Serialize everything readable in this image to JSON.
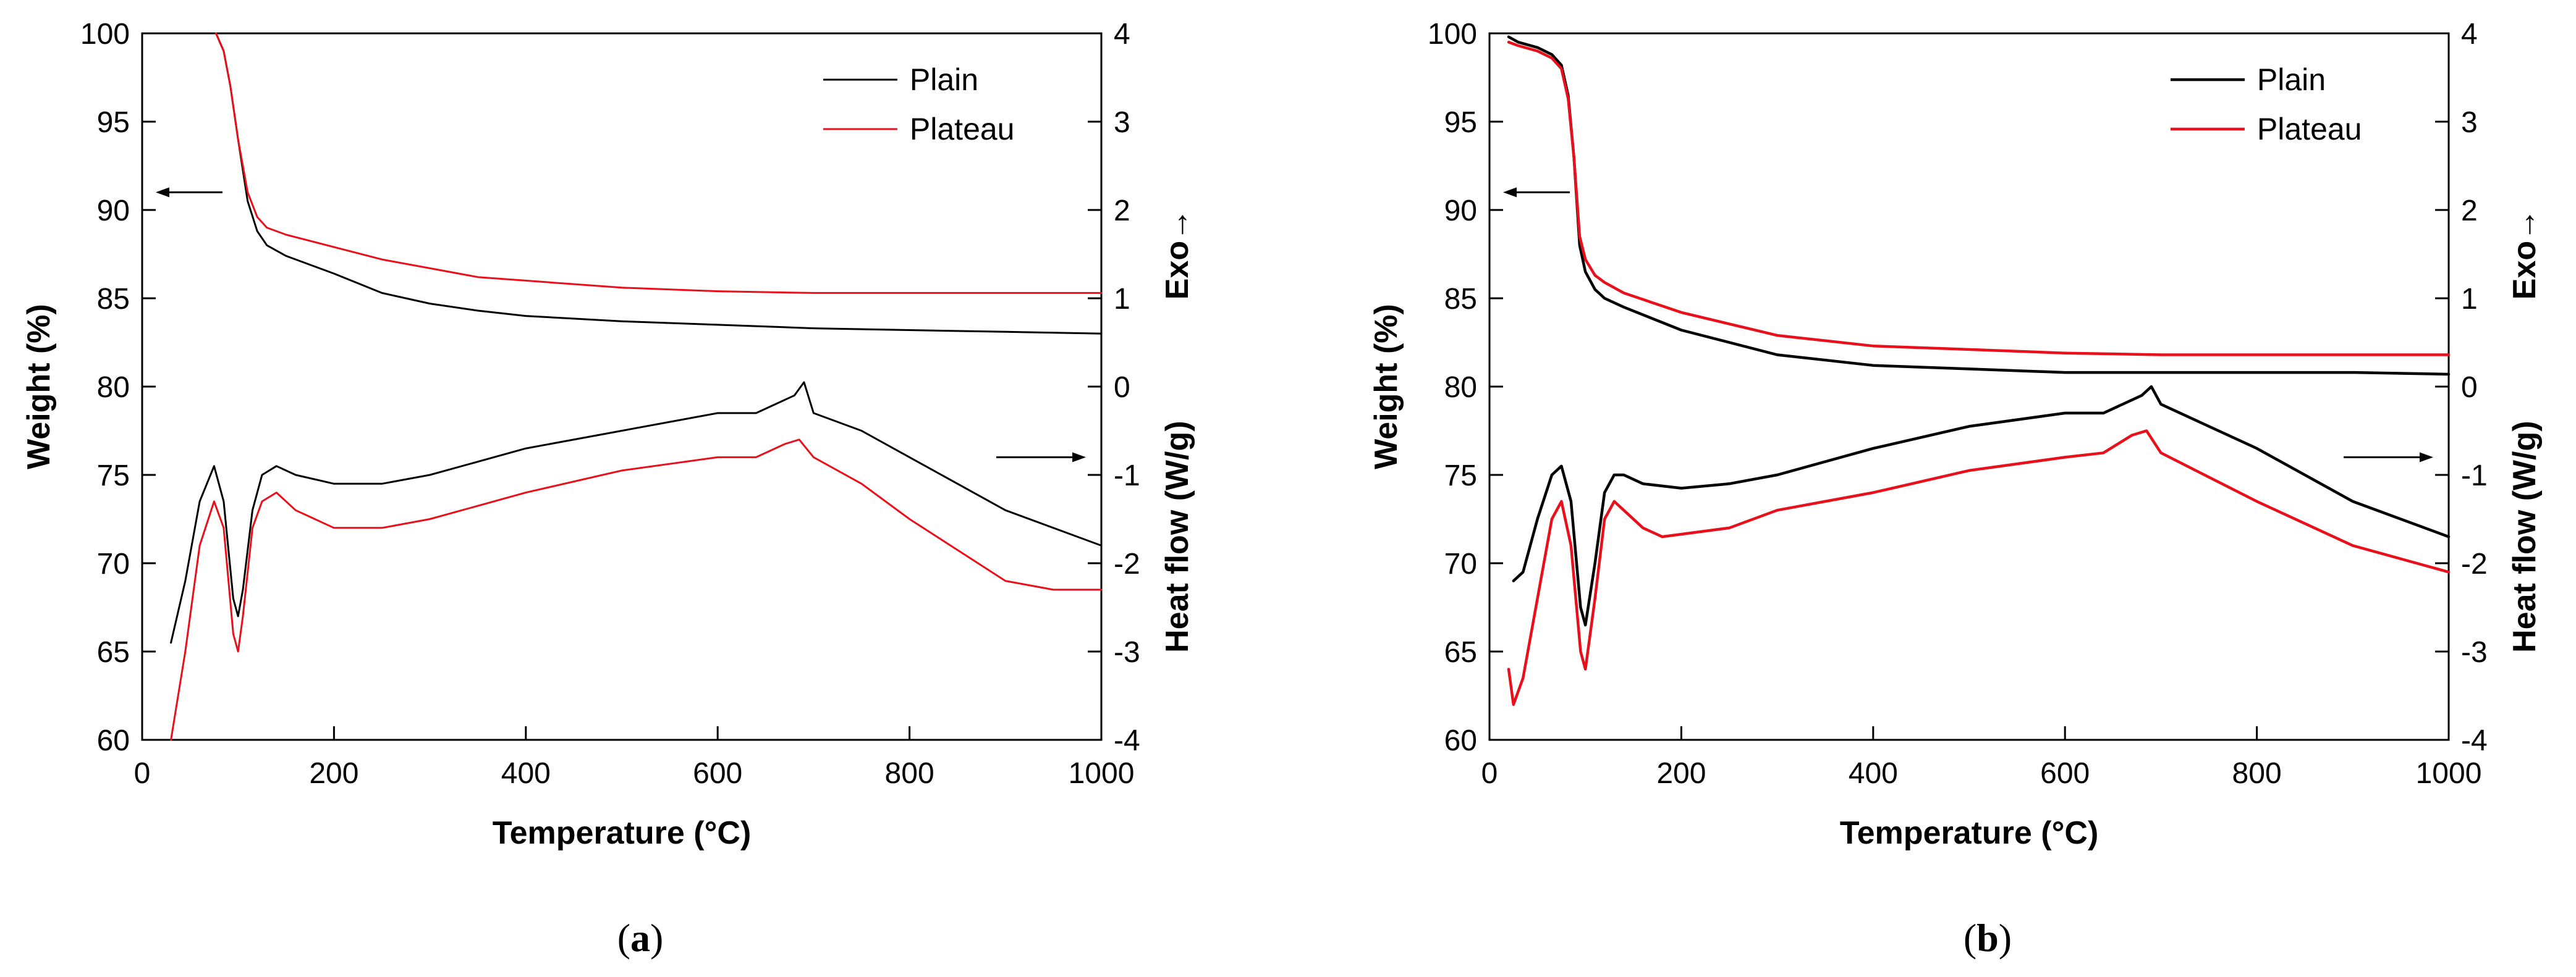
{
  "chart_data": [
    {
      "type": "line",
      "panel_label": "a",
      "xlabel": "Temperature (°C)",
      "ylabel_left": "Weight (%)",
      "ylabel_right": "Heat flow (W/g)",
      "exo_label": "Exo→",
      "xlim": [
        0,
        1000
      ],
      "ylim_left": [
        60,
        100
      ],
      "ylim_right": [
        -4,
        4
      ],
      "x_ticks": [
        0,
        200,
        400,
        600,
        800,
        1000
      ],
      "y_left_ticks": [
        60,
        65,
        70,
        75,
        80,
        85,
        90,
        95,
        100
      ],
      "y_right_ticks": [
        -4,
        -3,
        -2,
        -1,
        0,
        1,
        2,
        3,
        4
      ],
      "legend": [
        "Plain",
        "Plateau"
      ],
      "colors": {
        "Plain": "#000000",
        "Plateau": "#e8111b"
      },
      "series": [
        {
          "name": "Plain",
          "kind": "weight",
          "axis": "left",
          "x": [
            77,
            85,
            92,
            100,
            110,
            120,
            130,
            150,
            200,
            250,
            300,
            350,
            400,
            500,
            600,
            700,
            800,
            900,
            1000
          ],
          "y": [
            100,
            99,
            97,
            94,
            90.5,
            88.8,
            88,
            87.4,
            86.4,
            85.3,
            84.7,
            84.3,
            84.0,
            83.7,
            83.5,
            83.3,
            83.2,
            83.1,
            83.0
          ]
        },
        {
          "name": "Plateau",
          "kind": "weight",
          "axis": "left",
          "x": [
            77,
            85,
            92,
            100,
            110,
            120,
            130,
            150,
            200,
            250,
            300,
            350,
            400,
            500,
            600,
            700,
            800,
            900,
            1000
          ],
          "y": [
            100,
            99,
            97,
            94,
            91,
            89.6,
            89,
            88.6,
            87.9,
            87.2,
            86.7,
            86.2,
            86.0,
            85.6,
            85.4,
            85.3,
            85.3,
            85.3,
            85.3
          ]
        },
        {
          "name": "Plain",
          "kind": "heat",
          "axis": "right",
          "x": [
            30,
            45,
            60,
            75,
            85,
            95,
            100,
            105,
            115,
            125,
            140,
            160,
            200,
            250,
            300,
            400,
            500,
            600,
            640,
            680,
            690,
            700,
            750,
            800,
            900,
            1000
          ],
          "y": [
            -2.9,
            -2.2,
            -1.3,
            -0.9,
            -1.3,
            -2.4,
            -2.6,
            -2.3,
            -1.4,
            -1.0,
            -0.9,
            -1.0,
            -1.1,
            -1.1,
            -1.0,
            -0.7,
            -0.5,
            -0.3,
            -0.3,
            -0.1,
            0.05,
            -0.3,
            -0.5,
            -0.8,
            -1.4,
            -1.8
          ]
        },
        {
          "name": "Plateau",
          "kind": "heat",
          "axis": "right",
          "x": [
            30,
            45,
            60,
            75,
            85,
            95,
            100,
            105,
            115,
            125,
            140,
            160,
            200,
            250,
            300,
            400,
            500,
            600,
            640,
            670,
            685,
            700,
            750,
            800,
            900,
            950,
            1000
          ],
          "y": [
            -4.0,
            -3.0,
            -1.8,
            -1.3,
            -1.6,
            -2.8,
            -3.0,
            -2.6,
            -1.6,
            -1.3,
            -1.2,
            -1.4,
            -1.6,
            -1.6,
            -1.5,
            -1.2,
            -0.95,
            -0.8,
            -0.8,
            -0.65,
            -0.6,
            -0.8,
            -1.1,
            -1.5,
            -2.2,
            -2.3,
            -2.3
          ]
        }
      ]
    },
    {
      "type": "line",
      "panel_label": "b",
      "xlabel": "Temperature (°C)",
      "ylabel_left": "Weight (%)",
      "ylabel_right": "Heat flow (W/g)",
      "exo_label": "Exo→",
      "xlim": [
        0,
        1000
      ],
      "ylim_left": [
        60,
        100
      ],
      "ylim_right": [
        -4,
        4
      ],
      "x_ticks": [
        0,
        200,
        400,
        600,
        800,
        1000
      ],
      "y_left_ticks": [
        60,
        65,
        70,
        75,
        80,
        85,
        90,
        95,
        100
      ],
      "y_right_ticks": [
        -4,
        -3,
        -2,
        -1,
        0,
        1,
        2,
        3,
        4
      ],
      "legend": [
        "Plain",
        "Plateau"
      ],
      "colors": {
        "Plain": "#000000",
        "Plateau": "#e8111b"
      },
      "series": [
        {
          "name": "Plain",
          "kind": "weight",
          "axis": "left",
          "x": [
            20,
            30,
            50,
            65,
            75,
            82,
            88,
            94,
            100,
            110,
            120,
            140,
            200,
            300,
            400,
            500,
            600,
            700,
            800,
            900,
            1000
          ],
          "y": [
            99.8,
            99.5,
            99.2,
            98.8,
            98.2,
            96.5,
            93,
            88,
            86.5,
            85.5,
            85.0,
            84.5,
            83.2,
            81.8,
            81.2,
            81.0,
            80.8,
            80.8,
            80.8,
            80.8,
            80.7
          ]
        },
        {
          "name": "Plateau",
          "kind": "weight",
          "axis": "left",
          "x": [
            20,
            30,
            50,
            65,
            75,
            82,
            88,
            94,
            100,
            110,
            120,
            140,
            200,
            300,
            400,
            500,
            600,
            700,
            800,
            900,
            1000
          ],
          "y": [
            99.5,
            99.3,
            99.0,
            98.6,
            98.0,
            96.3,
            93,
            88.5,
            87.2,
            86.3,
            85.9,
            85.3,
            84.2,
            82.9,
            82.3,
            82.1,
            81.9,
            81.8,
            81.8,
            81.8,
            81.8
          ]
        },
        {
          "name": "Plain",
          "kind": "heat",
          "axis": "right",
          "x": [
            25,
            35,
            50,
            65,
            75,
            85,
            95,
            100,
            110,
            120,
            130,
            140,
            160,
            200,
            250,
            300,
            400,
            500,
            600,
            640,
            680,
            690,
            700,
            800,
            900,
            1000
          ],
          "y": [
            -2.2,
            -2.1,
            -1.5,
            -1.0,
            -0.9,
            -1.3,
            -2.5,
            -2.7,
            -2.0,
            -1.2,
            -1.0,
            -1.0,
            -1.1,
            -1.15,
            -1.1,
            -1.0,
            -0.7,
            -0.45,
            -0.3,
            -0.3,
            -0.1,
            0.0,
            -0.2,
            -0.7,
            -1.3,
            -1.7
          ]
        },
        {
          "name": "Plateau",
          "kind": "heat",
          "axis": "right",
          "x": [
            20,
            25,
            35,
            50,
            65,
            75,
            85,
            95,
            100,
            110,
            120,
            130,
            140,
            160,
            180,
            250,
            300,
            400,
            500,
            600,
            640,
            670,
            685,
            700,
            800,
            900,
            1000
          ],
          "y": [
            -3.2,
            -3.6,
            -3.3,
            -2.4,
            -1.5,
            -1.3,
            -1.8,
            -3.0,
            -3.2,
            -2.4,
            -1.5,
            -1.3,
            -1.4,
            -1.6,
            -1.7,
            -1.6,
            -1.4,
            -1.2,
            -0.95,
            -0.8,
            -0.75,
            -0.55,
            -0.5,
            -0.75,
            -1.3,
            -1.8,
            -2.1
          ]
        }
      ]
    }
  ]
}
